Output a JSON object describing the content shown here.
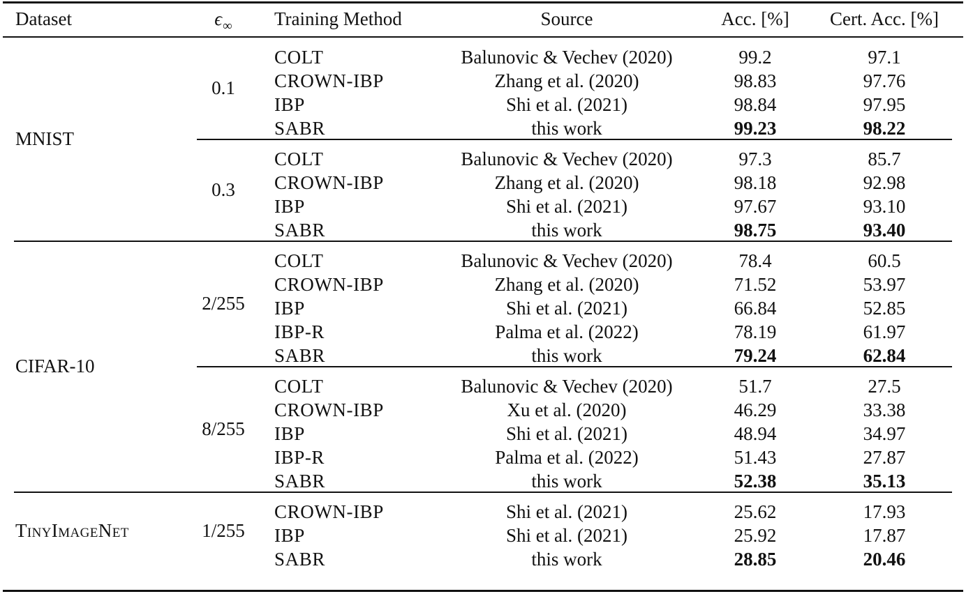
{
  "headers": {
    "dataset": "Dataset",
    "eps_symbol": "ϵ",
    "eps_subscript": "∞",
    "method": "Training Method",
    "source": "Source",
    "acc": "Acc. [%]",
    "cert": "Cert. Acc. [%]"
  },
  "datasets": [
    {
      "name": "MNIST",
      "groups": [
        {
          "eps": "0.1",
          "rows": [
            {
              "method": "COLT",
              "source": "Balunovic & Vechev (2020)",
              "acc": "99.2",
              "cert": "97.1",
              "bold": false
            },
            {
              "method": "CROWN-IBP",
              "source": "Zhang et al. (2020)",
              "acc": "98.83",
              "cert": "97.76",
              "bold": false
            },
            {
              "method": "IBP",
              "source": "Shi et al. (2021)",
              "acc": "98.84",
              "cert": "97.95",
              "bold": false
            },
            {
              "method": "SABR",
              "source": "this work",
              "acc": "99.23",
              "cert": "98.22",
              "bold": true
            }
          ]
        },
        {
          "eps": "0.3",
          "rows": [
            {
              "method": "COLT",
              "source": "Balunovic & Vechev (2020)",
              "acc": "97.3",
              "cert": "85.7",
              "bold": false
            },
            {
              "method": "CROWN-IBP",
              "source": "Zhang et al. (2020)",
              "acc": "98.18",
              "cert": "92.98",
              "bold": false
            },
            {
              "method": "IBP",
              "source": "Shi et al. (2021)",
              "acc": "97.67",
              "cert": "93.10",
              "bold": false
            },
            {
              "method": "SABR",
              "source": "this work",
              "acc": "98.75",
              "cert": "93.40",
              "bold": true
            }
          ]
        }
      ]
    },
    {
      "name": "CIFAR-10",
      "groups": [
        {
          "eps": "2/255",
          "rows": [
            {
              "method": "COLT",
              "source": "Balunovic & Vechev (2020)",
              "acc": "78.4",
              "cert": "60.5",
              "bold": false
            },
            {
              "method": "CROWN-IBP",
              "source": "Zhang et al. (2020)",
              "acc": "71.52",
              "cert": "53.97",
              "bold": false
            },
            {
              "method": "IBP",
              "source": "Shi et al. (2021)",
              "acc": "66.84",
              "cert": "52.85",
              "bold": false
            },
            {
              "method": "IBP-R",
              "source": "Palma et al. (2022)",
              "acc": "78.19",
              "cert": "61.97",
              "bold": false
            },
            {
              "method": "SABR",
              "source": "this work",
              "acc": "79.24",
              "cert": "62.84",
              "bold": true
            }
          ]
        },
        {
          "eps": "8/255",
          "rows": [
            {
              "method": "COLT",
              "source": "Balunovic & Vechev (2020)",
              "acc": "51.7",
              "cert": "27.5",
              "bold": false
            },
            {
              "method": "CROWN-IBP",
              "source": "Xu et al. (2020)",
              "acc": "46.29",
              "cert": "33.38",
              "bold": false
            },
            {
              "method": "IBP",
              "source": "Shi et al. (2021)",
              "acc": "48.94",
              "cert": "34.97",
              "bold": false
            },
            {
              "method": "IBP-R",
              "source": "Palma et al. (2022)",
              "acc": "51.43",
              "cert": "27.87",
              "bold": false
            },
            {
              "method": "SABR",
              "source": "this work",
              "acc": "52.38",
              "cert": "35.13",
              "bold": true
            }
          ]
        }
      ]
    },
    {
      "name": "TinyImageNet",
      "smallcaps": true,
      "groups": [
        {
          "eps": "1/255",
          "rows": [
            {
              "method": "CROWN-IBP",
              "source": "Shi et al. (2021)",
              "acc": "25.62",
              "cert": "17.93",
              "bold": false
            },
            {
              "method": "IBP",
              "source": "Shi et al. (2021)",
              "acc": "25.92",
              "cert": "17.87",
              "bold": false
            },
            {
              "method": "SABR",
              "source": "this work",
              "acc": "28.85",
              "cert": "20.46",
              "bold": true
            }
          ]
        }
      ]
    }
  ]
}
